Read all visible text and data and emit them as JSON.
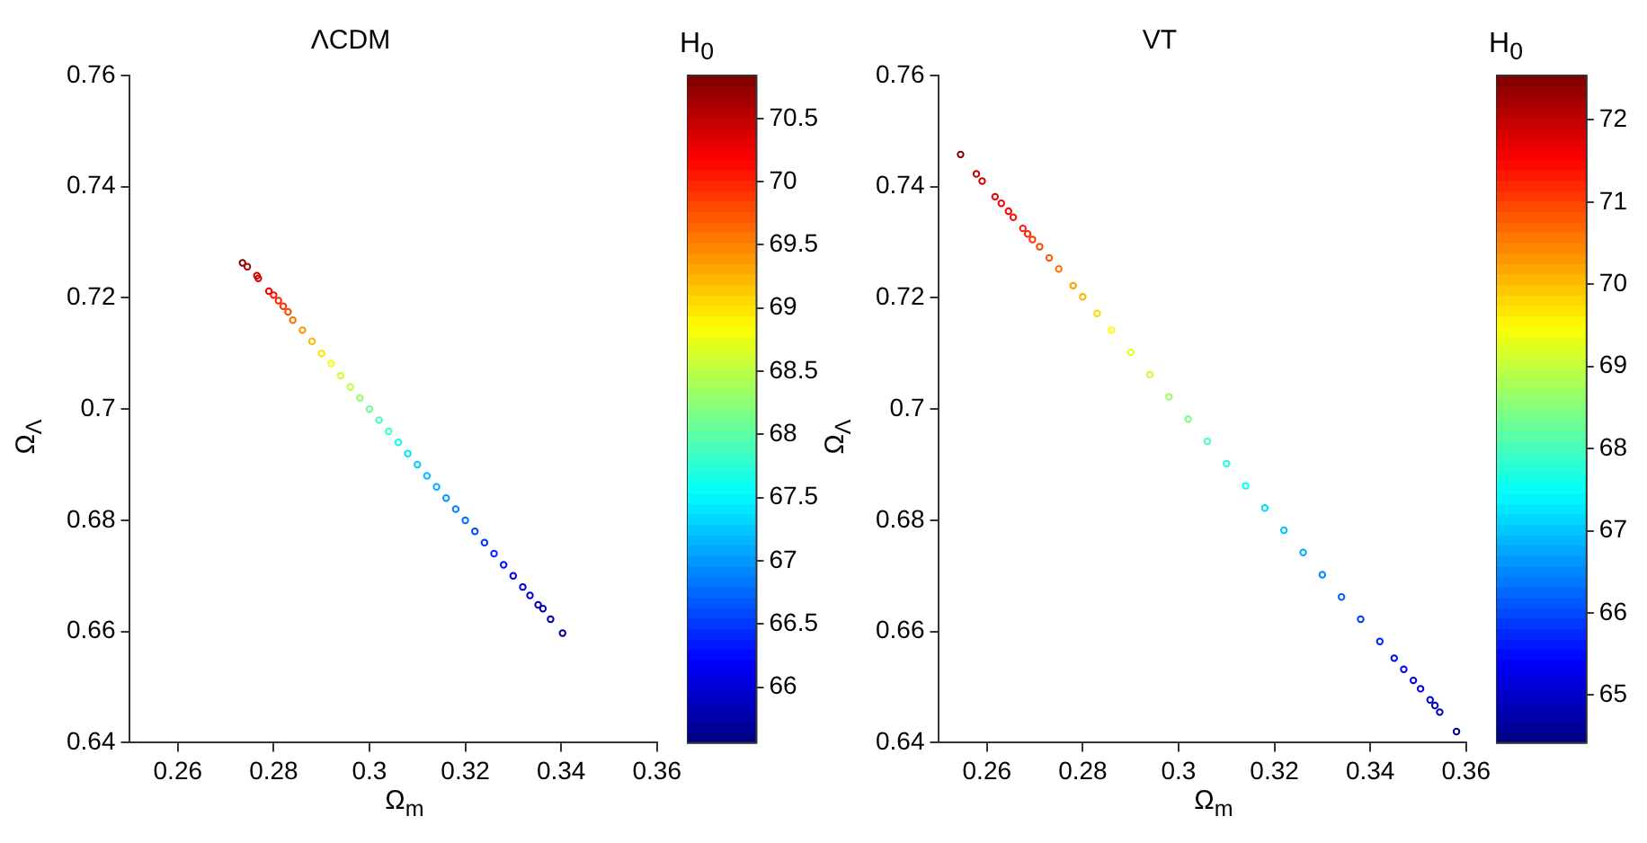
{
  "chart_data": [
    {
      "type": "scatter",
      "title": "ΛCDM",
      "xlabel": "Ω$_{m}$",
      "ylabel": "Ω$_{Λ}$",
      "clabel": "H$_{0}$",
      "xlim": [
        0.25,
        0.36
      ],
      "xticks": [
        0.26,
        0.28,
        0.3,
        0.32,
        0.34,
        0.36
      ],
      "ylim": [
        0.64,
        0.76
      ],
      "yticks": [
        0.64,
        0.66,
        0.68,
        0.7,
        0.72,
        0.74,
        0.76
      ],
      "clim": [
        65.56,
        70.84
      ],
      "cticks": [
        66,
        66.5,
        67,
        67.5,
        68,
        68.5,
        69,
        69.5,
        70,
        70.5
      ],
      "marker": "circle",
      "grid": false,
      "legend": false,
      "x": [
        0.2735,
        0.2745,
        0.2765,
        0.2768,
        0.279,
        0.28,
        0.281,
        0.282,
        0.283,
        0.284,
        0.286,
        0.288,
        0.29,
        0.292,
        0.294,
        0.296,
        0.298,
        0.3,
        0.302,
        0.304,
        0.306,
        0.308,
        0.31,
        0.312,
        0.314,
        0.316,
        0.318,
        0.32,
        0.322,
        0.324,
        0.326,
        0.328,
        0.33,
        0.332,
        0.3335,
        0.3352,
        0.3362,
        0.3378,
        0.3403
      ],
      "values": [
        0.7263,
        0.7256,
        0.724,
        0.7235,
        0.7212,
        0.7205,
        0.7195,
        0.7185,
        0.7175,
        0.716,
        0.7142,
        0.7122,
        0.71,
        0.7082,
        0.706,
        0.704,
        0.702,
        0.7,
        0.698,
        0.696,
        0.694,
        0.692,
        0.69,
        0.688,
        0.686,
        0.684,
        0.682,
        0.68,
        0.678,
        0.676,
        0.674,
        0.672,
        0.67,
        0.668,
        0.6665,
        0.6648,
        0.6641,
        0.6622,
        0.6597
      ],
      "cvalues": [
        70.8,
        70.6,
        70.4,
        70.4,
        70.2,
        70.1,
        70.0,
        69.9,
        69.8,
        69.6,
        69.4,
        69.2,
        69.0,
        68.8,
        68.6,
        68.5,
        68.3,
        68.1,
        67.9,
        67.8,
        67.6,
        67.4,
        67.3,
        67.2,
        67.1,
        67.0,
        66.9,
        66.8,
        66.6,
        66.5,
        66.4,
        66.3,
        66.2,
        66.1,
        66.0,
        65.9,
        65.85,
        65.7,
        65.6
      ]
    },
    {
      "type": "scatter",
      "title": "VT",
      "xlabel": "Ω$_{m}$",
      "ylabel": "Ω$_{Λ}$",
      "clabel": "H$_{0}$",
      "xlim": [
        0.25,
        0.36
      ],
      "xticks": [
        0.26,
        0.28,
        0.3,
        0.32,
        0.34,
        0.36
      ],
      "ylim": [
        0.64,
        0.76
      ],
      "yticks": [
        0.64,
        0.66,
        0.68,
        0.7,
        0.72,
        0.74,
        0.76
      ],
      "clim": [
        64.42,
        72.54
      ],
      "cticks": [
        65,
        66,
        67,
        68,
        69,
        70,
        71,
        72
      ],
      "marker": "circle",
      "grid": false,
      "legend": false,
      "x": [
        0.2545,
        0.2578,
        0.259,
        0.2617,
        0.263,
        0.2645,
        0.2655,
        0.2675,
        0.2685,
        0.2695,
        0.271,
        0.273,
        0.275,
        0.278,
        0.28,
        0.283,
        0.286,
        0.29,
        0.294,
        0.298,
        0.302,
        0.306,
        0.31,
        0.314,
        0.318,
        0.322,
        0.326,
        0.33,
        0.334,
        0.338,
        0.342,
        0.345,
        0.347,
        0.349,
        0.3505,
        0.3525,
        0.3535,
        0.3545,
        0.358
      ],
      "values": [
        0.7458,
        0.7423,
        0.741,
        0.7382,
        0.737,
        0.7356,
        0.7345,
        0.7325,
        0.7315,
        0.7305,
        0.7292,
        0.7272,
        0.7252,
        0.7222,
        0.7202,
        0.7172,
        0.7142,
        0.7102,
        0.7062,
        0.7022,
        0.6982,
        0.6942,
        0.6902,
        0.6862,
        0.6822,
        0.6782,
        0.6742,
        0.6702,
        0.6662,
        0.6622,
        0.6582,
        0.6552,
        0.6532,
        0.6512,
        0.6497,
        0.6477,
        0.6467,
        0.6455,
        0.642
      ],
      "cvalues": [
        72.5,
        72.0,
        71.9,
        71.7,
        71.6,
        71.5,
        71.4,
        71.3,
        71.2,
        71.1,
        71.0,
        70.8,
        70.6,
        70.3,
        70.1,
        69.8,
        69.5,
        69.3,
        69.0,
        68.7,
        68.4,
        68.1,
        67.8,
        67.5,
        67.2,
        67.0,
        66.8,
        66.5,
        66.2,
        65.9,
        65.7,
        65.5,
        65.4,
        65.3,
        65.2,
        65.1,
        65.0,
        64.9,
        64.6
      ]
    }
  ]
}
